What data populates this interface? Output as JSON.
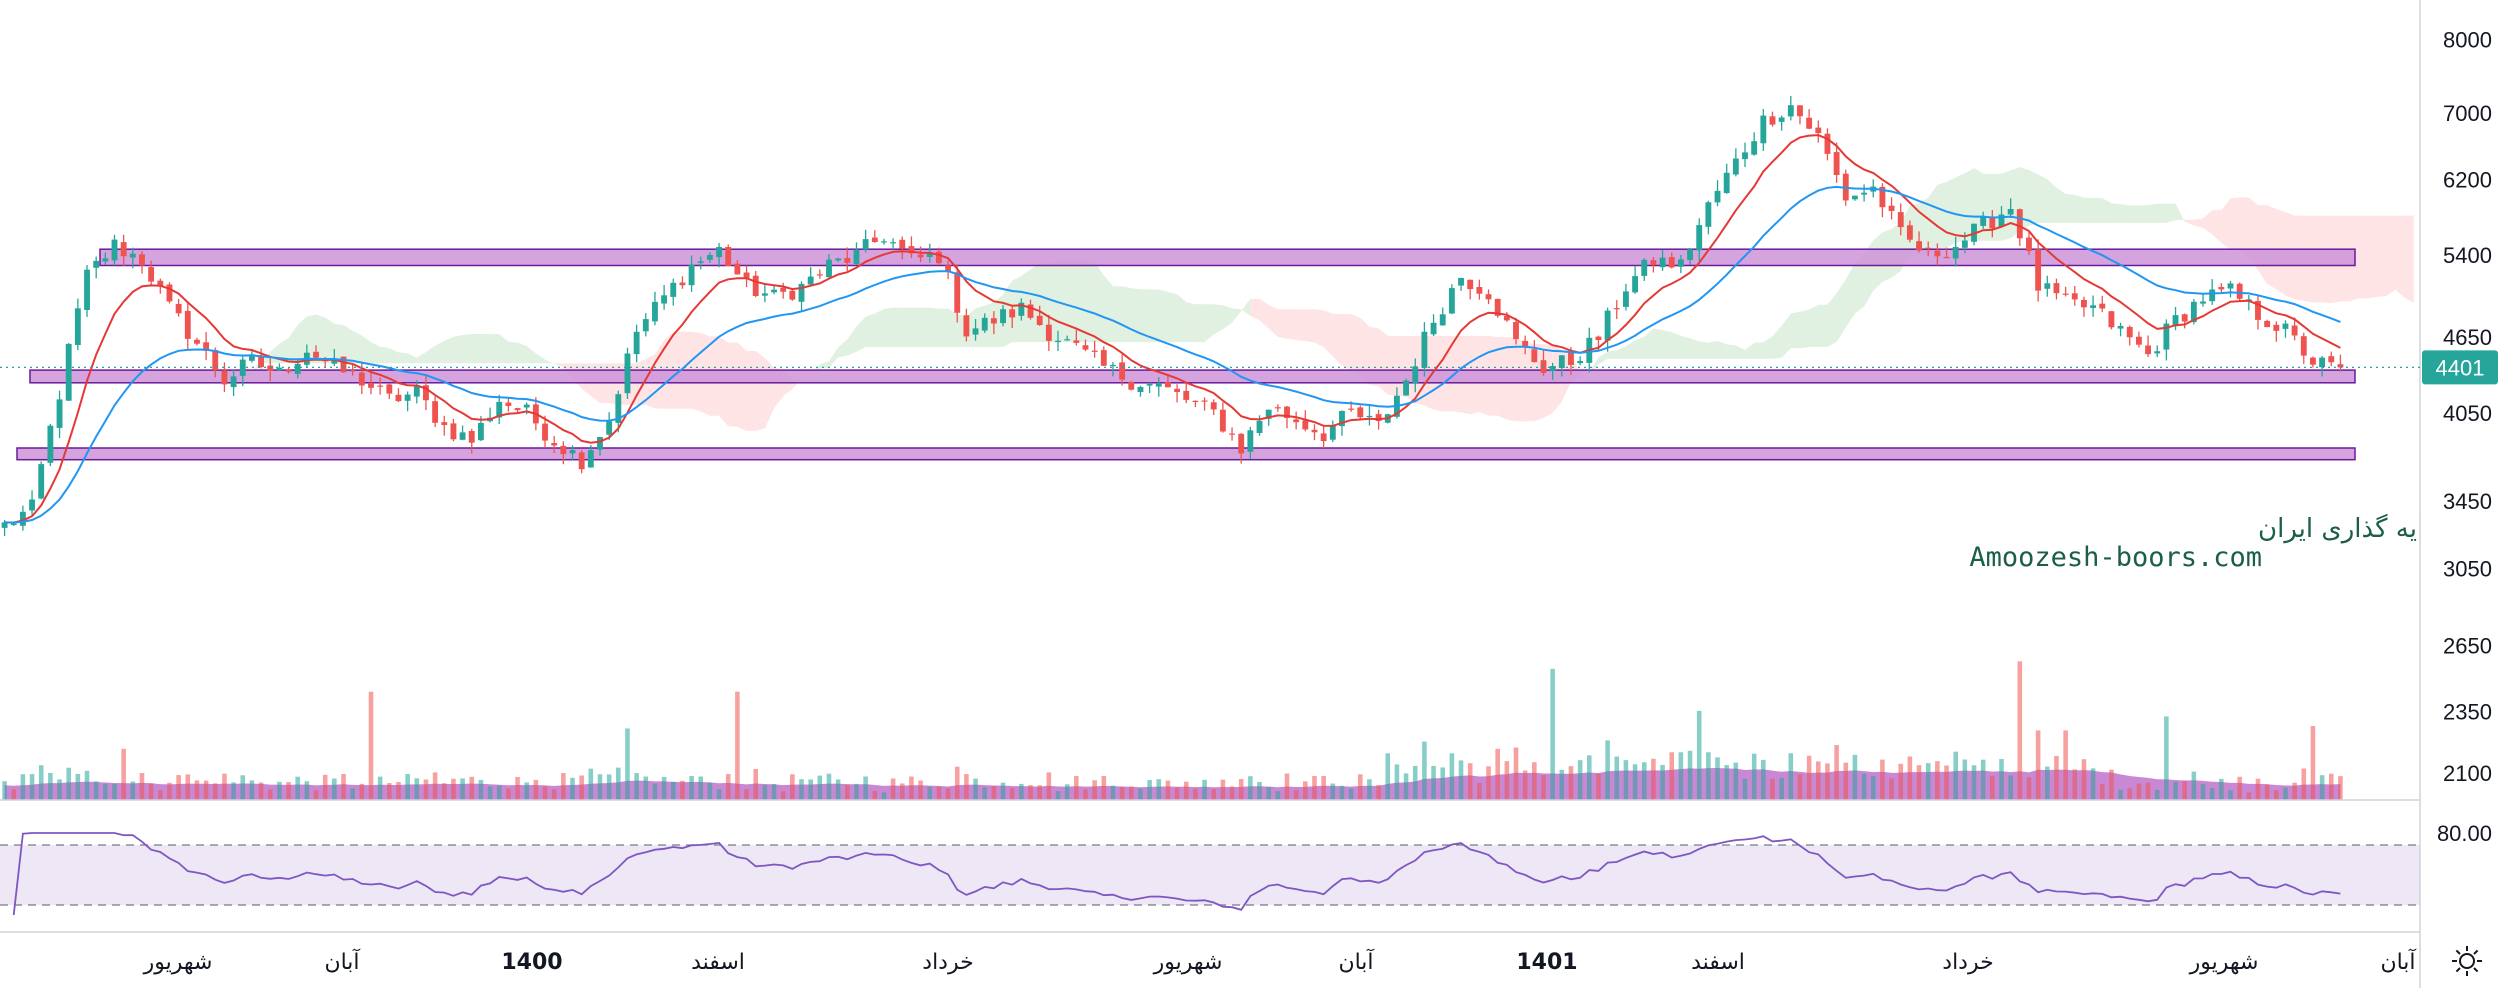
{
  "chart_data": {
    "type": "candlestick",
    "y_axis": {
      "ticks": [
        8000,
        7000,
        6200,
        5400,
        4650,
        4050,
        3450,
        3050,
        2650,
        2350,
        2100
      ],
      "scale": "log",
      "range": [
        2000,
        8600
      ]
    },
    "x_axis": {
      "labels": [
        {
          "text": "شهریور",
          "bold": false
        },
        {
          "text": "آبان",
          "bold": false
        },
        {
          "text": "1400",
          "bold": true
        },
        {
          "text": "اسفند",
          "bold": false
        },
        {
          "text": "خرداد",
          "bold": false
        },
        {
          "text": "شهریور",
          "bold": false
        },
        {
          "text": "آبان",
          "bold": false
        },
        {
          "text": "1401",
          "bold": true
        },
        {
          "text": "اسفند",
          "bold": false
        },
        {
          "text": "خرداد",
          "bold": false
        },
        {
          "text": "شهریور",
          "bold": false
        },
        {
          "text": "آبان",
          "bold": false
        }
      ]
    },
    "last_price": "4401",
    "price_path": [
      [
        0,
        3300
      ],
      [
        3,
        3400
      ],
      [
        6,
        4200
      ],
      [
        9,
        5200
      ],
      [
        12,
        5500
      ],
      [
        15,
        5350
      ],
      [
        18,
        4900
      ],
      [
        21,
        4600
      ],
      [
        24,
        4300
      ],
      [
        27,
        4450
      ],
      [
        30,
        4350
      ],
      [
        33,
        4550
      ],
      [
        36,
        4400
      ],
      [
        39,
        4300
      ],
      [
        42,
        4150
      ],
      [
        45,
        4200
      ],
      [
        48,
        3950
      ],
      [
        51,
        3850
      ],
      [
        54,
        4150
      ],
      [
        57,
        4050
      ],
      [
        60,
        3850
      ],
      [
        63,
        3720
      ],
      [
        66,
        4000
      ],
      [
        69,
        4700
      ],
      [
        72,
        5000
      ],
      [
        75,
        5300
      ],
      [
        78,
        5450
      ],
      [
        81,
        5100
      ],
      [
        84,
        5000
      ],
      [
        87,
        5100
      ],
      [
        90,
        5300
      ],
      [
        93,
        5400
      ],
      [
        96,
        5600
      ],
      [
        99,
        5350
      ],
      [
        102,
        5400
      ],
      [
        105,
        4700
      ],
      [
        108,
        4800
      ],
      [
        111,
        4900
      ],
      [
        114,
        4700
      ],
      [
        117,
        4550
      ],
      [
        120,
        4400
      ],
      [
        123,
        4300
      ],
      [
        126,
        4250
      ],
      [
        129,
        4150
      ],
      [
        132,
        4050
      ],
      [
        135,
        3800
      ],
      [
        138,
        4100
      ],
      [
        141,
        4000
      ],
      [
        144,
        3900
      ],
      [
        147,
        4050
      ],
      [
        150,
        3950
      ],
      [
        153,
        4300
      ],
      [
        156,
        4800
      ],
      [
        159,
        5200
      ],
      [
        162,
        5050
      ],
      [
        165,
        4600
      ],
      [
        168,
        4400
      ],
      [
        171,
        4450
      ],
      [
        174,
        4650
      ],
      [
        177,
        5100
      ],
      [
        180,
        5350
      ],
      [
        183,
        5300
      ],
      [
        186,
        5900
      ],
      [
        189,
        6400
      ],
      [
        192,
        6900
      ],
      [
        195,
        7100
      ],
      [
        198,
        6700
      ],
      [
        201,
        6000
      ],
      [
        204,
        6100
      ],
      [
        207,
        5600
      ],
      [
        210,
        5400
      ],
      [
        213,
        5500
      ],
      [
        216,
        5700
      ],
      [
        219,
        5900
      ],
      [
        222,
        5100
      ],
      [
        225,
        4950
      ],
      [
        228,
        4900
      ],
      [
        231,
        4700
      ],
      [
        234,
        4500
      ],
      [
        237,
        4800
      ],
      [
        240,
        5000
      ],
      [
        243,
        5050
      ],
      [
        246,
        4850
      ],
      [
        249,
        4700
      ],
      [
        252,
        4450
      ],
      [
        254,
        4401
      ]
    ],
    "support_resistance_zones": [
      {
        "low": 5300,
        "high": 5460
      },
      {
        "low": 4280,
        "high": 4380
      },
      {
        "low": 3720,
        "high": 3800
      }
    ],
    "indicators": [
      {
        "id": "ema-short",
        "color": "#e53935",
        "period": 9
      },
      {
        "id": "ema-long",
        "color": "#2196f3",
        "period": 26
      }
    ],
    "volume_color": "#9c27b0",
    "rsi": {
      "upper_band_label": "80.00",
      "line_color": "#7e57c2",
      "band_fill": "#ede7f6"
    }
  },
  "watermark": {
    "line1": "انجمن خبرگان سرمایه گذاری ایران",
    "line2": "Amoozesh-boors.com"
  },
  "icons": {
    "settings": "sun-gear-icon"
  }
}
